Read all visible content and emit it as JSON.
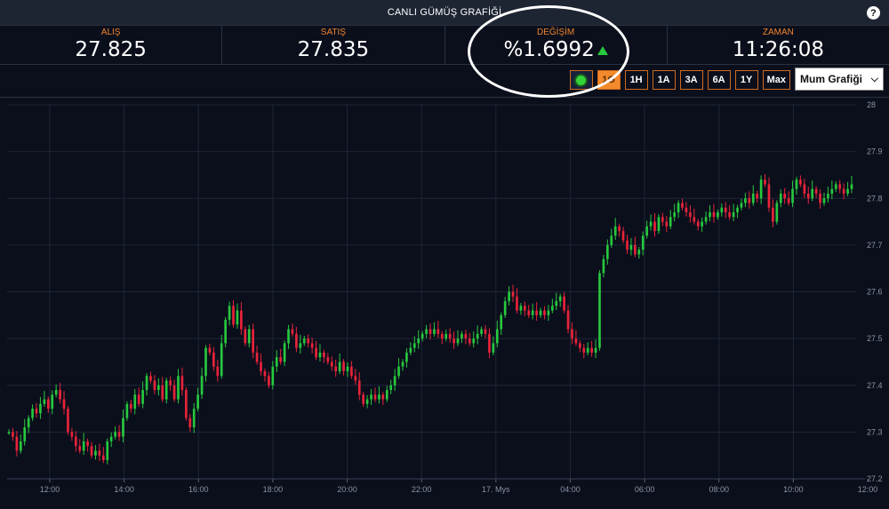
{
  "header": {
    "title": "CANLI GÜMÜŞ GRAFİĞİ",
    "help_label": "?"
  },
  "stats": [
    {
      "label": "ALIŞ",
      "value": "27.825"
    },
    {
      "label": "SATIŞ",
      "value": "27.835"
    },
    {
      "label": "DEĞİŞİM",
      "value": "%1.6992",
      "trend": "up"
    },
    {
      "label": "ZAMAN",
      "value": "11:26:08"
    }
  ],
  "controls": {
    "timeframes": [
      "1G",
      "1H",
      "1A",
      "3A",
      "6A",
      "1Y",
      "Max"
    ],
    "active_timeframe": "1G",
    "chart_type_selected": "Mum Grafiği"
  },
  "colors": {
    "up": "#27c83e",
    "down": "#e8233a",
    "accent": "#f28a2b",
    "background": "#0b0f1c",
    "grid": "#1f2636"
  },
  "icons": {
    "help": "question-circle-icon",
    "live": "live-dot-icon",
    "select": "chevron-down-icon",
    "trend": "up-triangle-icon"
  },
  "chart_data": {
    "type": "candlestick",
    "x_ticks": [
      "12:00",
      "14:00",
      "16:00",
      "18:00",
      "20:00",
      "22:00",
      "17. Mys",
      "04:00",
      "06:00",
      "08:00",
      "10:00",
      "12:00"
    ],
    "y_ticks": [
      "27.2",
      "27.3",
      "27.4",
      "27.5",
      "27.6",
      "27.7",
      "27.8",
      "27.9",
      "28"
    ],
    "ylim": [
      27.2,
      28.0
    ],
    "grid": true,
    "series": [
      {
        "closes": [
          27.3,
          27.29,
          27.26,
          27.28,
          27.31,
          27.33,
          27.35,
          27.34,
          27.36,
          27.37,
          27.35,
          27.38,
          27.39,
          27.37,
          27.35,
          27.3,
          27.29,
          27.27,
          27.26,
          27.28,
          27.27,
          27.25,
          27.26,
          27.25,
          27.24,
          27.28,
          27.29,
          27.3,
          27.29,
          27.33,
          27.36,
          27.35,
          27.38,
          27.36,
          27.39,
          27.42,
          27.41,
          27.39,
          27.4,
          27.37,
          27.41,
          27.4,
          27.37,
          27.42,
          27.39,
          27.33,
          27.31,
          27.35,
          27.38,
          27.42,
          27.48,
          27.47,
          27.44,
          27.42,
          27.49,
          27.54,
          27.57,
          27.53,
          27.56,
          27.52,
          27.49,
          27.52,
          27.47,
          27.45,
          27.43,
          27.42,
          27.4,
          27.44,
          27.46,
          27.45,
          27.49,
          27.52,
          27.51,
          27.48,
          27.49,
          27.5,
          27.49,
          27.48,
          27.46,
          27.47,
          27.46,
          27.45,
          27.44,
          27.43,
          27.45,
          27.43,
          27.44,
          27.42,
          27.41,
          27.38,
          27.36,
          27.37,
          27.38,
          27.37,
          27.38,
          27.37,
          27.39,
          27.4,
          27.42,
          27.44,
          27.45,
          27.47,
          27.48,
          27.49,
          27.5,
          27.51,
          27.52,
          27.51,
          27.52,
          27.51,
          27.5,
          27.51,
          27.5,
          27.49,
          27.5,
          27.51,
          27.5,
          27.49,
          27.5,
          27.51,
          27.52,
          27.51,
          27.47,
          27.49,
          27.52,
          27.55,
          27.58,
          27.6,
          27.59,
          27.56,
          27.57,
          27.56,
          27.55,
          27.56,
          27.55,
          27.56,
          27.55,
          27.56,
          27.57,
          27.58,
          27.59,
          27.56,
          27.52,
          27.5,
          27.49,
          27.48,
          27.47,
          27.48,
          27.47,
          27.48,
          27.64,
          27.67,
          27.7,
          27.72,
          27.74,
          27.73,
          27.71,
          27.69,
          27.7,
          27.68,
          27.69,
          27.72,
          27.74,
          27.75,
          27.73,
          27.76,
          27.75,
          27.74,
          27.76,
          27.77,
          27.79,
          27.78,
          27.77,
          27.76,
          27.75,
          27.74,
          27.75,
          27.76,
          27.77,
          27.76,
          27.77,
          27.78,
          27.77,
          27.76,
          27.77,
          27.78,
          27.79,
          27.8,
          27.79,
          27.81,
          27.8,
          27.84,
          27.83,
          27.78,
          27.75,
          27.79,
          27.81,
          27.8,
          27.79,
          27.82,
          27.84,
          27.83,
          27.81,
          27.8,
          27.82,
          27.81,
          27.79,
          27.8,
          27.81,
          27.82,
          27.83,
          27.82,
          27.81,
          27.82,
          27.83
        ]
      }
    ]
  }
}
